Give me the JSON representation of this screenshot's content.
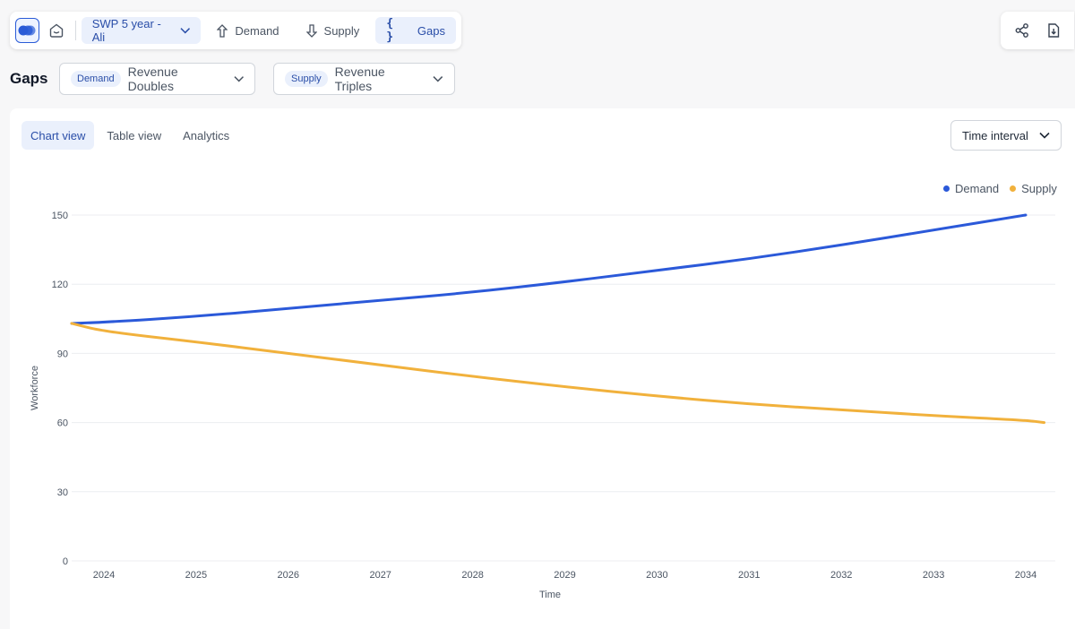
{
  "toolbar": {
    "logo_icon": "app-logo-icon",
    "home_icon": "home-icon",
    "plan_label": "SWP 5 year - Ali",
    "nav": [
      {
        "label": "Demand",
        "icon": "arrow-up-icon"
      },
      {
        "label": "Supply",
        "icon": "arrow-down-icon"
      },
      {
        "label": "Gaps",
        "icon": "braces-icon",
        "active": true
      }
    ],
    "brace_glyph": "{ }"
  },
  "right_tools": {
    "share_icon": "share-icon",
    "download_icon": "download-icon"
  },
  "page": {
    "title": "Gaps",
    "demand_scenario": {
      "tag": "Demand",
      "value": "Revenue Doubles"
    },
    "supply_scenario": {
      "tag": "Supply",
      "value": "Revenue Triples"
    }
  },
  "card": {
    "tabs": [
      {
        "label": "Chart view",
        "active": true
      },
      {
        "label": "Table view"
      },
      {
        "label": "Analytics"
      }
    ],
    "interval_label": "Time interval"
  },
  "colors": {
    "accent": "#2a5bd7",
    "demand": "#2b59d9",
    "supply": "#f1b13c"
  },
  "chart_data": {
    "type": "line",
    "title": "",
    "xlabel": "Time",
    "ylabel": "Workforce",
    "x": [
      2023.65,
      2024,
      2025,
      2026,
      2027,
      2028,
      2029,
      2030,
      2031,
      2032,
      2033,
      2034,
      2034.2
    ],
    "x_ticks": [
      "2024",
      "2025",
      "2026",
      "2027",
      "2028",
      "2029",
      "2030",
      "2031",
      "2032",
      "2033",
      "2034"
    ],
    "ylim": [
      0,
      150
    ],
    "y_ticks": [
      0,
      30,
      60,
      90,
      120,
      150
    ],
    "grid": true,
    "legend": "top-right",
    "series": [
      {
        "name": "Demand",
        "values": [
          103,
          103.5,
          106,
          109.5,
          113,
          116.5,
          121,
          126,
          131,
          137,
          143.5,
          150,
          null
        ]
      },
      {
        "name": "Supply",
        "values": [
          103,
          99.5,
          95,
          90,
          85,
          80,
          75.5,
          71.5,
          68,
          65.5,
          63,
          61,
          60
        ]
      }
    ]
  }
}
